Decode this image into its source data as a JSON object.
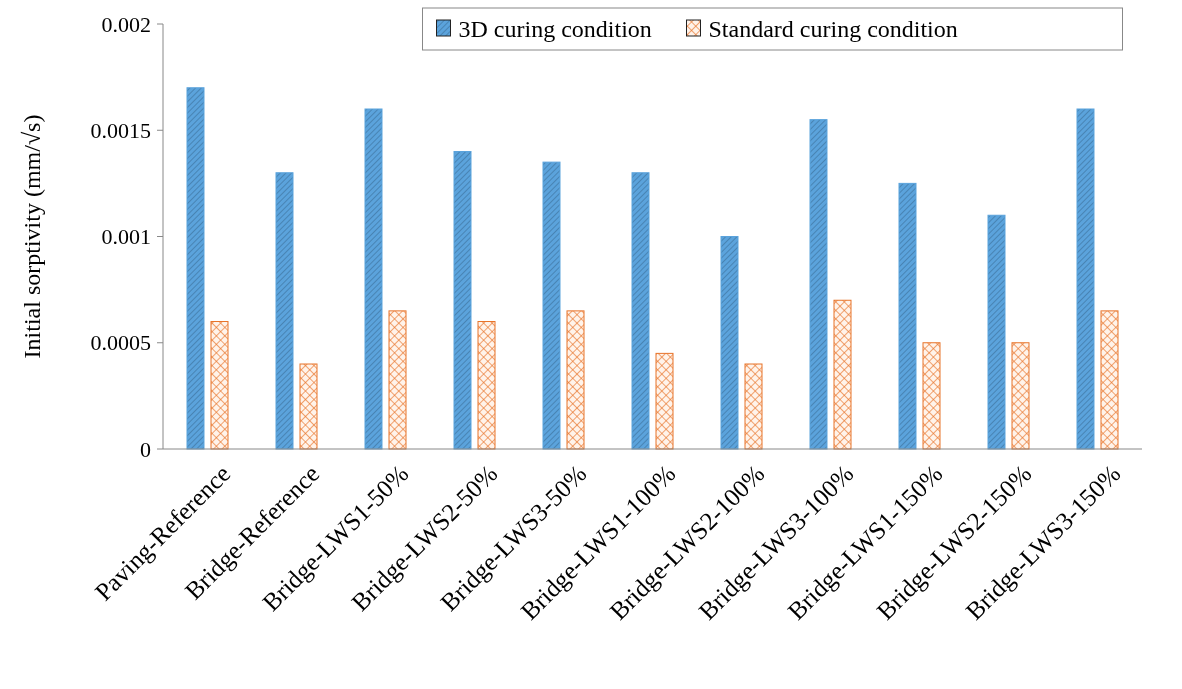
{
  "chart_data": {
    "type": "bar",
    "ylabel": "Initial sorptivity (mm/√s)",
    "categories": [
      "Paving-Reference",
      "Bridge-Reference",
      "Bridge-LWS1-50%",
      "Bridge-LWS2-50%",
      "Bridge-LWS3-50%",
      "Bridge-LWS1-100%",
      "Bridge-LWS2-100%",
      "Bridge-LWS3-100%",
      "Bridge-LWS1-150%",
      "Bridge-LWS2-150%",
      "Bridge-LWS3-150%"
    ],
    "series": [
      {
        "name": "3D curing condition",
        "color": "#5ba3dc",
        "values": [
          0.0017,
          0.0013,
          0.0016,
          0.0014,
          0.00135,
          0.0013,
          0.001,
          0.00155,
          0.00125,
          0.0011,
          0.0016
        ]
      },
      {
        "name": "Standard curing condition",
        "color": "#e8742a",
        "values": [
          0.0006,
          0.0004,
          0.00065,
          0.0006,
          0.00065,
          0.00045,
          0.0004,
          0.0007,
          0.0005,
          0.0005,
          0.00065
        ]
      }
    ],
    "ylim": [
      0,
      0.002
    ],
    "yticks": [
      0,
      0.0005,
      0.001,
      0.0015,
      0.002
    ],
    "grid": false,
    "legend": "top"
  }
}
